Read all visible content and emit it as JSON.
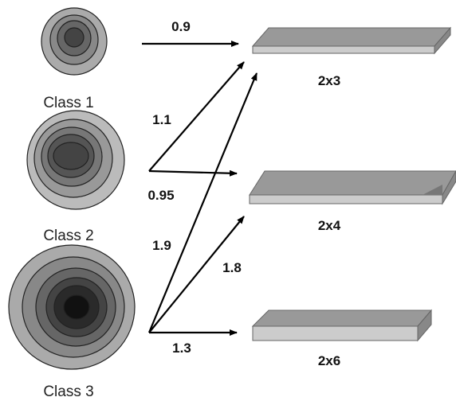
{
  "classes": [
    {
      "label": "Class 1"
    },
    {
      "label": "Class 2"
    },
    {
      "label": "Class 3"
    }
  ],
  "boards": [
    {
      "label": "2x3"
    },
    {
      "label": "2x4"
    },
    {
      "label": "2x6"
    }
  ],
  "edges": [
    {
      "label": "0.9"
    },
    {
      "label": "1.1"
    },
    {
      "label": "0.95"
    },
    {
      "label": "1.9"
    },
    {
      "label": "1.8"
    },
    {
      "label": "1.3"
    }
  ]
}
